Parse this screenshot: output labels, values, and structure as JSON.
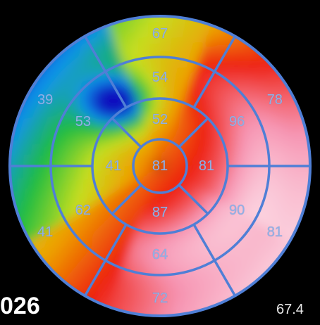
{
  "case_id": "026",
  "global_value": "67.4",
  "segments": {
    "basal": [
      "67",
      "78",
      "81",
      "72",
      "41",
      "39"
    ],
    "mid": [
      "54",
      "96",
      "90",
      "64",
      "62",
      "53"
    ],
    "apical": [
      "52",
      "81",
      "87",
      "41"
    ],
    "apex": "81"
  },
  "colors": {
    "background": "#000000",
    "grid_lines": "#4f7fd6",
    "label": "#8fb0e6",
    "scale": [
      "#1010c0",
      "#10a0f0",
      "#20c040",
      "#c8e020",
      "#f0a000",
      "#f02010",
      "#f8a0b8",
      "#ffe8f0"
    ]
  }
}
